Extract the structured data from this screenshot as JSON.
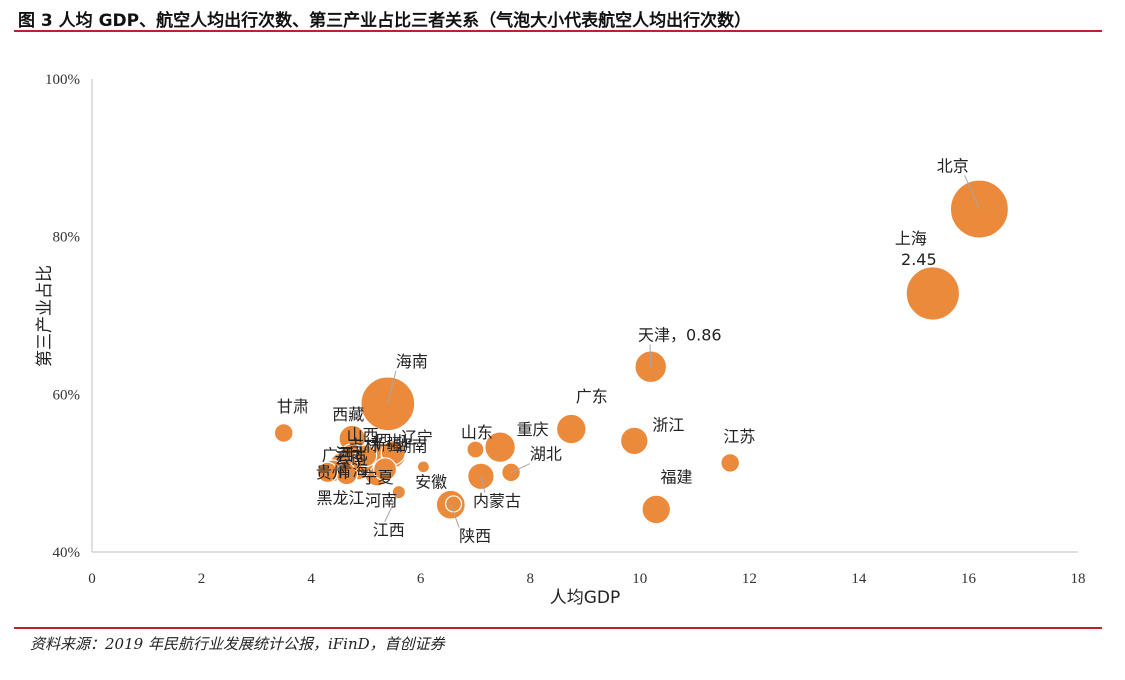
{
  "figure": {
    "title": "图 3  人均 GDP、航空人均出行次数、第三产业占比三者关系（气泡大小代表航空人均出行次数）",
    "source": "资料来源：2019 年民航行业发展统计公报，iFinD，首创证券"
  },
  "colors": {
    "bubble": "#ec8a3c",
    "bubble_stroke": "#ffffff",
    "rule": "#c0202a",
    "axis": "#bfbfbf",
    "leader": "#a6a6a6"
  },
  "chart_data": {
    "type": "scatter",
    "xlabel": "人均GDP",
    "ylabel": "第三产业占比",
    "xlim": [
      0,
      18
    ],
    "ylim": [
      0.4,
      1.0
    ],
    "x_ticks": [
      0,
      2,
      4,
      6,
      8,
      10,
      12,
      14,
      16,
      18
    ],
    "x_tick_labels": [
      "0",
      "2",
      "4",
      "6",
      "8",
      "10",
      "12",
      "14",
      "16",
      "18"
    ],
    "y_ticks": [
      0.4,
      0.6,
      0.8,
      1.0
    ],
    "y_tick_labels": [
      "40%",
      "60%",
      "80%",
      "100%"
    ],
    "grid": false,
    "size_meaning": "航空人均出行次数",
    "points": [
      {
        "label": "北京",
        "x": 16.2,
        "y": 0.835,
        "size": 2.9
      },
      {
        "label": "上海",
        "value_label": "2.45",
        "x": 15.35,
        "y": 0.728,
        "size": 2.45
      },
      {
        "label": "天津",
        "value_label": "0.86",
        "x": 10.2,
        "y": 0.635,
        "size": 0.86
      },
      {
        "label": "江苏",
        "x": 11.65,
        "y": 0.513,
        "size": 0.3
      },
      {
        "label": "浙江",
        "x": 9.9,
        "y": 0.541,
        "size": 0.65
      },
      {
        "label": "福建",
        "x": 10.3,
        "y": 0.454,
        "size": 0.7
      },
      {
        "label": "广东",
        "x": 8.75,
        "y": 0.556,
        "size": 0.75
      },
      {
        "label": "重庆",
        "x": 7.45,
        "y": 0.533,
        "size": 0.8
      },
      {
        "label": "湖北",
        "x": 7.65,
        "y": 0.501,
        "size": 0.3
      },
      {
        "label": "山东",
        "x": 7.0,
        "y": 0.53,
        "size": 0.25
      },
      {
        "label": "内蒙古",
        "x": 7.1,
        "y": 0.496,
        "size": 0.6
      },
      {
        "label": "安徽",
        "x": 6.6,
        "y": 0.461,
        "size": 0.22
      },
      {
        "label": "陕西",
        "x": 6.55,
        "y": 0.46,
        "size": 0.72
      },
      {
        "label": "江西",
        "x": 5.6,
        "y": 0.476,
        "size": 0.15
      },
      {
        "label": "海南",
        "x": 5.4,
        "y": 0.588,
        "size": 2.5
      },
      {
        "label": "甘肃",
        "x": 3.5,
        "y": 0.551,
        "size": 0.3
      },
      {
        "label": "西藏",
        "x": 4.75,
        "y": 0.544,
        "size": 0.6
      },
      {
        "label": "湖南",
        "x": 6.05,
        "y": 0.508,
        "size": 0.1
      },
      {
        "label": "广西",
        "x": 4.4,
        "y": 0.503,
        "size": 0.4
      },
      {
        "label": "河北",
        "x": 4.65,
        "y": 0.499,
        "size": 0.4
      },
      {
        "label": "河南",
        "x": 5.2,
        "y": 0.499,
        "size": 0.5
      },
      {
        "label": "黑龙江",
        "x": 4.3,
        "y": 0.501,
        "size": 0.35
      },
      {
        "label": "吉林",
        "x": 4.95,
        "y": 0.514,
        "size": 0.4
      },
      {
        "label": "辽宁",
        "x": 5.5,
        "y": 0.522,
        "size": 0.5
      },
      {
        "label": "青海",
        "x": 4.85,
        "y": 0.506,
        "size": 0.45
      },
      {
        "label": "宁夏",
        "x": 5.35,
        "y": 0.505,
        "size": 0.45
      },
      {
        "label": "山西",
        "x": 5.0,
        "y": 0.522,
        "size": 0.4
      },
      {
        "label": "四川",
        "x": 5.5,
        "y": 0.526,
        "size": 0.5
      },
      {
        "label": "新疆",
        "x": 5.3,
        "y": 0.519,
        "size": 0.6
      },
      {
        "label": "云南",
        "x": 4.75,
        "y": 0.522,
        "size": 0.5
      },
      {
        "label": "贵州",
        "x": 4.55,
        "y": 0.511,
        "size": 0.45
      }
    ],
    "shown_labels": [
      "北京",
      "上海",
      "天津",
      "江苏",
      "浙江",
      "福建",
      "广东",
      "重庆",
      "湖北",
      "山东",
      "内蒙古",
      "安徽",
      "陕西",
      "江西",
      "海南",
      "甘肃",
      "西藏",
      "湖南",
      "黑龙江",
      "河南",
      "广西",
      "河北",
      "吉林",
      "辽宁",
      "青海",
      "宁夏",
      "山西",
      "四川",
      "新疆",
      "云南",
      "贵州"
    ]
  }
}
